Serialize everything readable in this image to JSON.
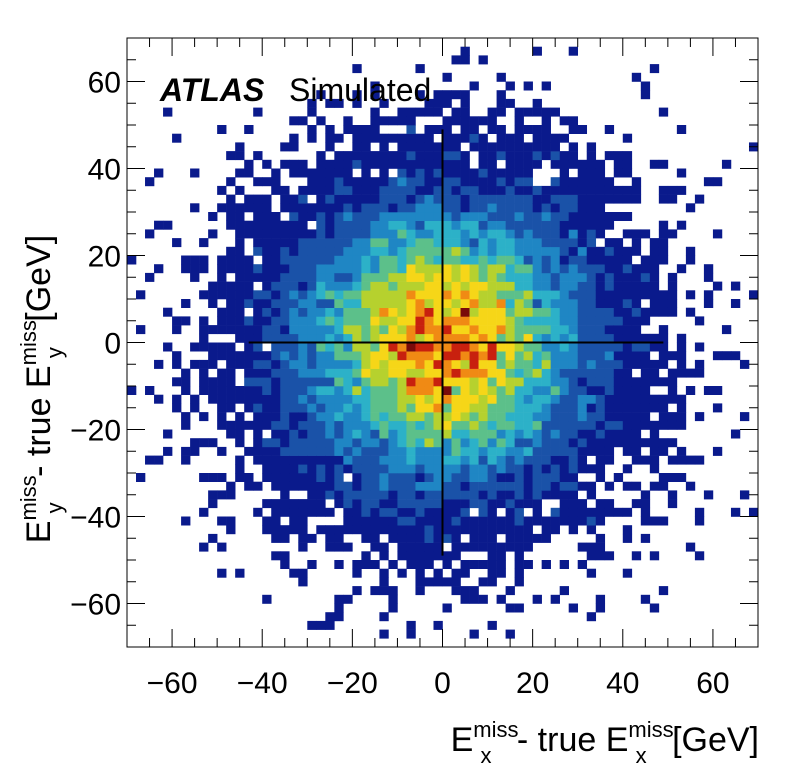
{
  "chart_data": {
    "type": "heatmap",
    "subtype": "2d-histogram",
    "experiment_label": "ATLAS",
    "status_label": "Simulated",
    "xlabel": {
      "main": "E",
      "sup": "miss",
      "sub": "x",
      "rest": " - true E",
      "sup2": "miss",
      "sub2": "x",
      "unit": " [GeV]"
    },
    "ylabel": {
      "main": "E",
      "sup": "miss",
      "sub": "y",
      "rest": " - true E",
      "sup2": "miss",
      "sub2": "y",
      "unit": " [GeV]"
    },
    "xlim": [
      -70,
      70
    ],
    "ylim": [
      -70,
      70
    ],
    "xticks": [
      -60,
      -40,
      -20,
      0,
      20,
      40,
      60
    ],
    "yticks": [
      -60,
      -40,
      -20,
      0,
      20,
      40,
      60
    ],
    "tick_labels": [
      "−60",
      "−40",
      "−20",
      "0",
      "20",
      "40",
      "60"
    ],
    "bin_width": 2,
    "distribution": {
      "mean_x": 0,
      "mean_y": 0,
      "sigma_x": 17,
      "sigma_y": 17,
      "n_entries_estimate": 25000
    },
    "crosshair": {
      "x_range": [
        -43,
        49
      ],
      "y_at": 0,
      "y_range": [
        -49,
        49
      ],
      "x_at": 0
    },
    "colormap": [
      "#0a1a8c",
      "#1a52a8",
      "#1f86c4",
      "#2cb1c8",
      "#5cc08a",
      "#b6d12e",
      "#f6d618",
      "#f08a14",
      "#c8200e",
      "#7a0a0a"
    ],
    "grid": false,
    "legend": "none"
  }
}
